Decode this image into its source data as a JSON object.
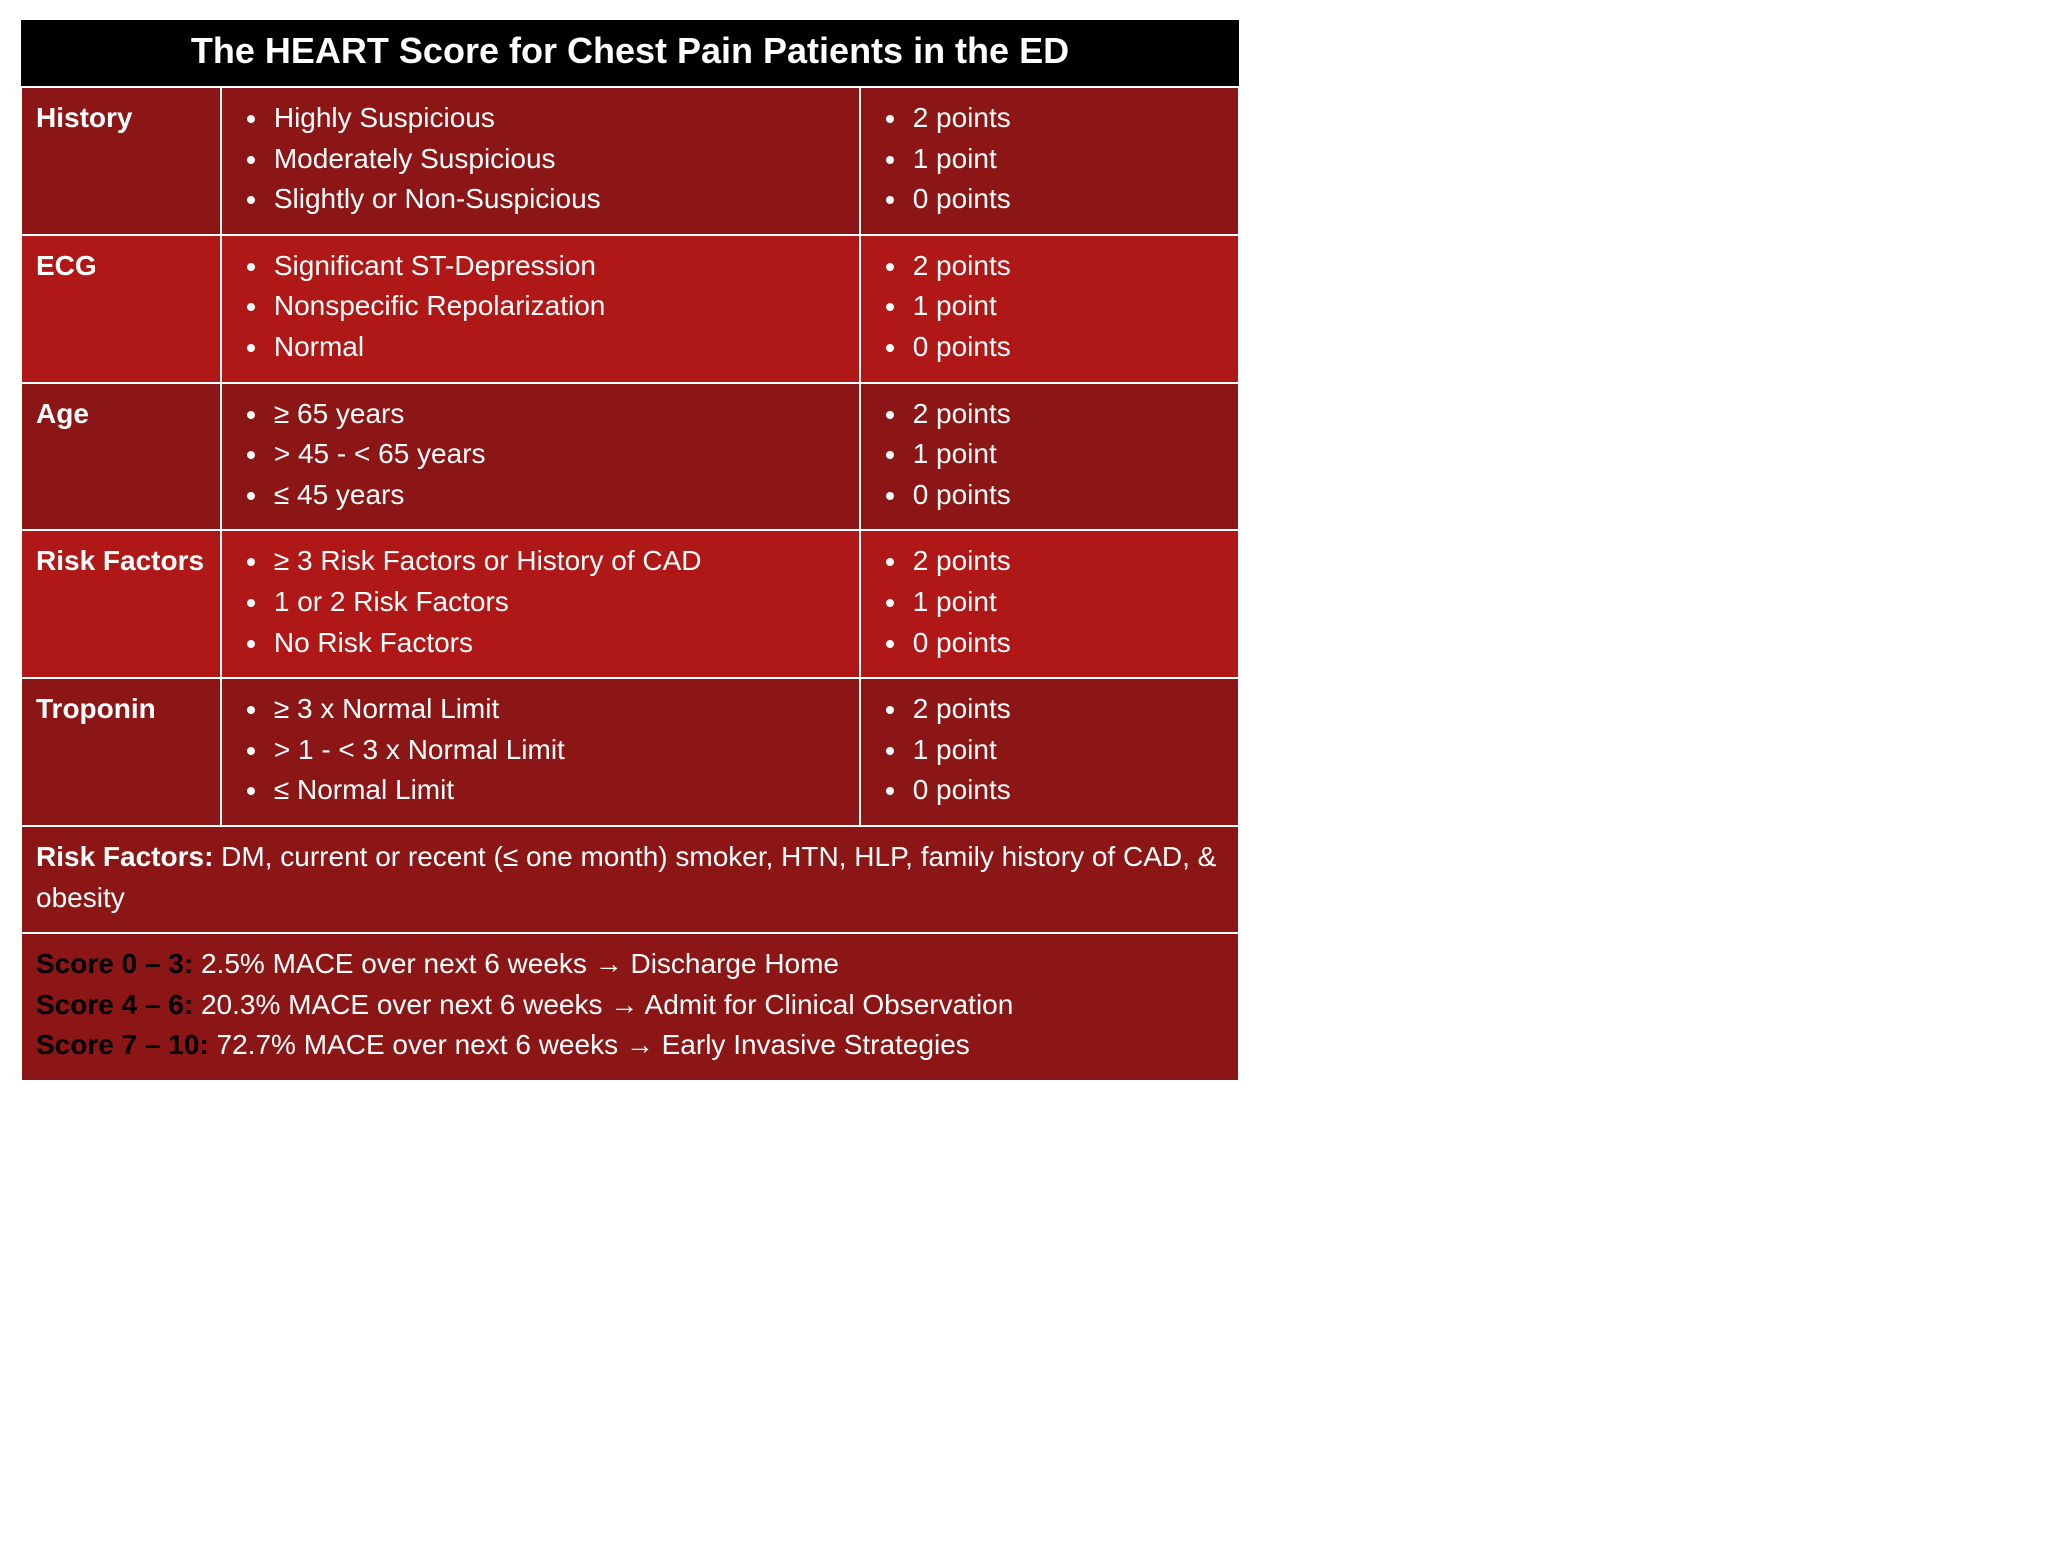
{
  "title": "The HEART Score for Chest Pain Patients in the ED",
  "colors": {
    "title_bg": "#000000",
    "row_dark": "#8c1515",
    "row_light": "#b01818",
    "border": "#ffffff",
    "text": "#ffffff",
    "score_label": "#000000"
  },
  "fontsize": {
    "title": 36,
    "body": 28
  },
  "criteria": [
    {
      "label": "History",
      "shade": "dark",
      "descriptions": [
        "Highly Suspicious",
        "Moderately Suspicious",
        "Slightly or Non-Suspicious"
      ],
      "points": [
        "2 points",
        "1 point",
        "0 points"
      ]
    },
    {
      "label": "ECG",
      "shade": "light",
      "descriptions": [
        "Significant ST-Depression",
        "Nonspecific Repolarization",
        "Normal"
      ],
      "points": [
        "2 points",
        "1 point",
        "0 points"
      ]
    },
    {
      "label": "Age",
      "shade": "dark",
      "descriptions": [
        "≥ 65 years",
        "> 45 - < 65 years",
        "≤ 45 years"
      ],
      "points": [
        "2 points",
        "1 point",
        "0 points"
      ]
    },
    {
      "label": "Risk Factors",
      "shade": "light",
      "descriptions": [
        "≥ 3 Risk Factors or History of CAD",
        "1 or 2 Risk Factors",
        "No Risk Factors"
      ],
      "points": [
        "2 points",
        "1 point",
        "0 points"
      ]
    },
    {
      "label": "Troponin",
      "shade": "dark",
      "descriptions": [
        "≥ 3 x Normal Limit",
        "> 1 - < 3 x Normal Limit",
        "≤ Normal Limit"
      ],
      "points": [
        "2 points",
        "1 point",
        "0 points"
      ]
    }
  ],
  "risk_factors_note": {
    "label": "Risk Factors:",
    "text": " DM, current or recent (≤ one month) smoker, HTN, HLP, family history of CAD, & obesity"
  },
  "scores": [
    {
      "range": "Score 0 – 3:",
      "text": " 2.5% MACE over next 6 weeks → Discharge Home"
    },
    {
      "range": "Score 4 – 6:",
      "text": " 20.3% MACE over next 6 weeks → Admit for Clinical Observation"
    },
    {
      "range": "Score 7 – 10:",
      "text": " 72.7% MACE over next 6 weeks → Early Invasive Strategies"
    }
  ]
}
